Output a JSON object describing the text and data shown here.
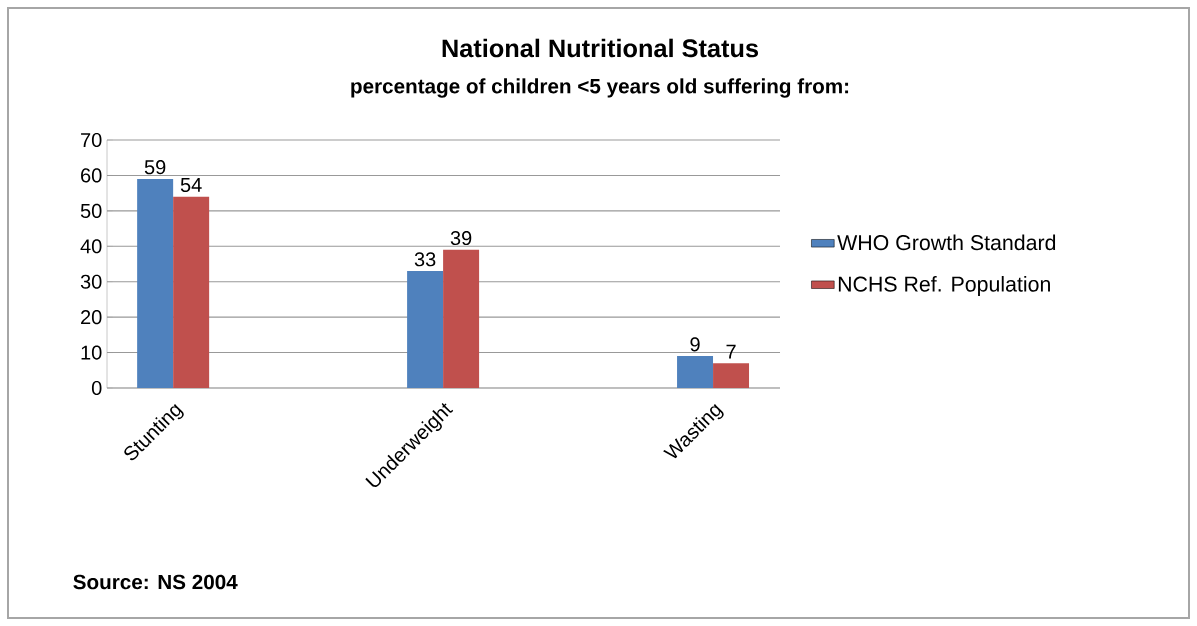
{
  "chart_data": {
    "type": "bar",
    "title": "National Nutritional Status",
    "subtitle": "percentage of children <5 years old suffering from:",
    "categories": [
      "Stunting",
      "Underweight",
      "Wasting"
    ],
    "series": [
      {
        "name": "WHO Growth Standard",
        "color": "#4f81bd",
        "values": [
          59,
          33,
          9
        ]
      },
      {
        "name": "NCHS Ref. Population",
        "color": "#c0504d",
        "values": [
          54,
          39,
          7
        ]
      }
    ],
    "ylim": [
      0,
      70
    ],
    "yticks": [
      0,
      10,
      20,
      30,
      40,
      50,
      60,
      70
    ],
    "grid": "y",
    "legend": "right",
    "data_labels": true,
    "annotations": [
      "Source: NS 2004"
    ]
  }
}
